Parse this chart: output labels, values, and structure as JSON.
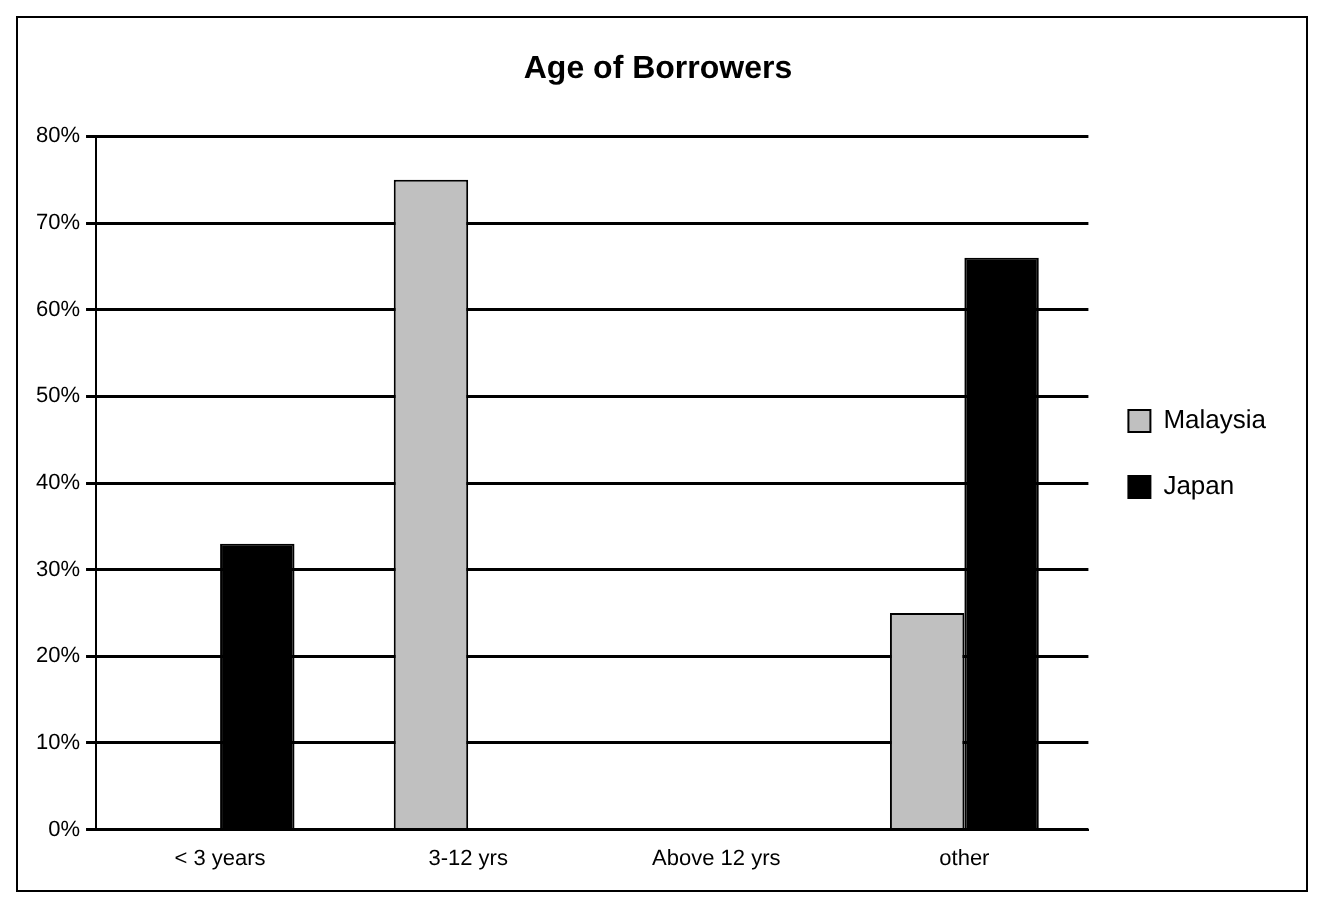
{
  "chart_data": {
    "type": "bar",
    "title": "Age of Borrowers",
    "categories": [
      "< 3 years",
      "3-12 yrs",
      "Above 12 yrs",
      "other"
    ],
    "series": [
      {
        "name": "Malaysia",
        "color": "#c0c0c0",
        "values": [
          0,
          75,
          0,
          25
        ]
      },
      {
        "name": "Japan",
        "color": "#000000",
        "values": [
          33,
          0,
          0,
          66
        ]
      }
    ],
    "ylim": [
      0,
      80
    ],
    "yticks": [
      {
        "value": 0,
        "label": "0%"
      },
      {
        "value": 10,
        "label": "10%"
      },
      {
        "value": 20,
        "label": "20%"
      },
      {
        "value": 30,
        "label": "30%"
      },
      {
        "value": 40,
        "label": "40%"
      },
      {
        "value": 50,
        "label": "50%"
      },
      {
        "value": 60,
        "label": "60%"
      },
      {
        "value": 70,
        "label": "70%"
      },
      {
        "value": 80,
        "label": "80%"
      }
    ],
    "grid": "y",
    "legend": "right"
  }
}
